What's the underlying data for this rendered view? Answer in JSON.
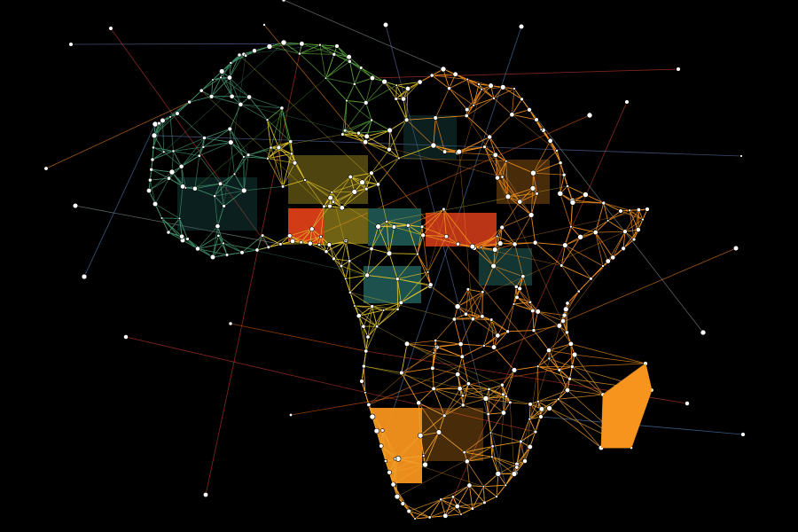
{
  "image": {
    "subject": "network-map-of-africa",
    "background_color": "#000000",
    "palette": {
      "west": "#3f8f6a",
      "north": "#5aa83a",
      "center": "#e0c32a",
      "east": "#f0901e",
      "south": "#f2a22a",
      "red_block": "#e8421a",
      "teal_block": "#1f5a55",
      "orange_block": "#f7941d",
      "node": "#ffffff"
    }
  }
}
